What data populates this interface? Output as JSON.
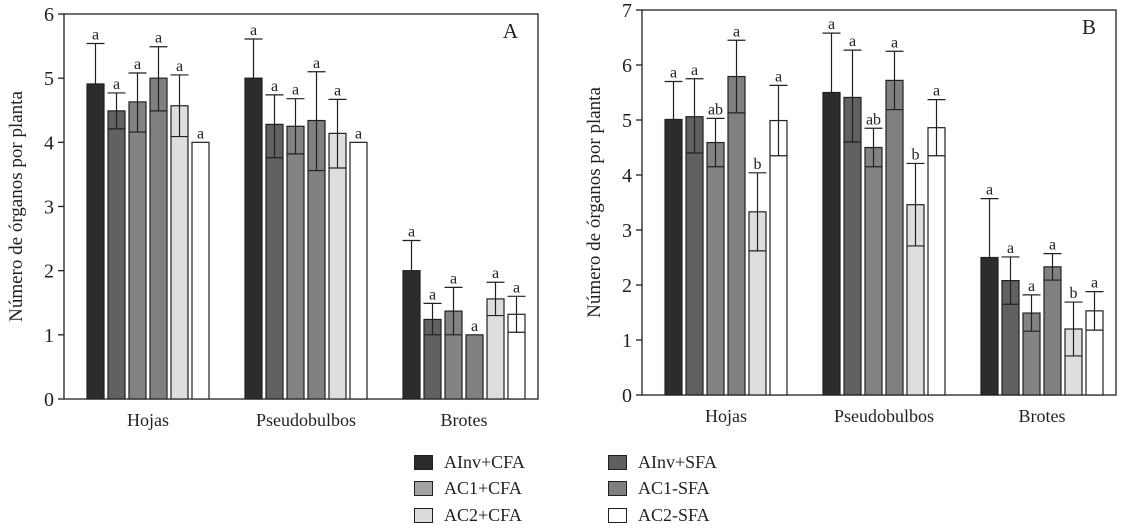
{
  "chart_data": [
    {
      "type": "bar",
      "panel": "A",
      "title": "",
      "xlabel": "",
      "ylabel": "Número de órganos por planta",
      "ylim": [
        0,
        6
      ],
      "yticks": [
        0,
        1,
        2,
        3,
        4,
        5,
        6
      ],
      "categories": [
        "Hojas",
        "Pseudobulbos",
        "Brotes"
      ],
      "series": [
        {
          "name": "AInv+CFA",
          "values": [
            4.91,
            5.0,
            2.0
          ],
          "error_upper": [
            5.54,
            5.61,
            2.47
          ],
          "significance": [
            "a",
            "a",
            "a"
          ]
        },
        {
          "name": "AInv+SFA",
          "values": [
            4.49,
            4.28,
            1.24
          ],
          "error_upper": [
            4.77,
            4.74,
            1.49
          ],
          "error_lower": [
            4.21,
            3.76,
            1.0
          ],
          "significance": [
            "a",
            "a",
            "a"
          ]
        },
        {
          "name": "AC1+CFA",
          "values": [
            4.63,
            4.25,
            1.37
          ],
          "error_upper": [
            5.08,
            4.68,
            1.74
          ],
          "error_lower": [
            4.16,
            3.82,
            1.0
          ],
          "significance": [
            "a",
            "a",
            "a"
          ]
        },
        {
          "name": "AC1-SFA",
          "values": [
            5.0,
            4.34,
            1.0
          ],
          "error_upper": [
            5.49,
            5.1,
            1.0
          ],
          "error_lower": [
            4.49,
            3.56,
            1.0
          ],
          "significance": [
            "a",
            "a",
            "a"
          ]
        },
        {
          "name": "AC2+CFA",
          "values": [
            4.57,
            4.14,
            1.56
          ],
          "error_upper": [
            5.05,
            4.67,
            1.82
          ],
          "error_lower": [
            4.09,
            3.6,
            1.3
          ],
          "significance": [
            "a",
            "a",
            "a"
          ]
        },
        {
          "name": "AC2-SFA",
          "values": [
            4.0,
            4.0,
            1.32
          ],
          "error_upper": [
            4.0,
            4.0,
            1.6
          ],
          "error_lower": [
            4.0,
            4.0,
            1.04
          ],
          "significance": [
            "a",
            "a",
            "a"
          ]
        }
      ],
      "grid": false,
      "legend": "bottom-center"
    },
    {
      "type": "bar",
      "panel": "B",
      "title": "",
      "xlabel": "",
      "ylabel": "Número de órganos por planta",
      "ylim": [
        0,
        7
      ],
      "yticks": [
        0,
        1,
        2,
        3,
        4,
        5,
        6,
        7
      ],
      "categories": [
        "Hojas",
        "Pseudobulbos",
        "Brotes"
      ],
      "series": [
        {
          "name": "AInv+CFA",
          "values": [
            5.01,
            5.5,
            2.5
          ],
          "error_upper": [
            5.7,
            6.58,
            3.57
          ],
          "significance": [
            "a",
            "a",
            "a"
          ]
        },
        {
          "name": "AInv+SFA",
          "values": [
            5.06,
            5.41,
            2.08
          ],
          "error_upper": [
            5.75,
            6.27,
            2.51
          ],
          "error_lower": [
            4.4,
            4.6,
            1.65
          ],
          "significance": [
            "a",
            "a",
            "a"
          ]
        },
        {
          "name": "AC1+CFA",
          "values": [
            4.59,
            4.5,
            1.49
          ],
          "error_upper": [
            5.03,
            4.85,
            1.82
          ],
          "error_lower": [
            4.15,
            4.15,
            1.16
          ],
          "significance": [
            "ab",
            "ab",
            "a"
          ]
        },
        {
          "name": "AC1-SFA",
          "values": [
            5.79,
            5.72,
            2.33
          ],
          "error_upper": [
            6.45,
            6.25,
            2.57
          ],
          "error_lower": [
            5.13,
            5.19,
            2.09
          ],
          "significance": [
            "a",
            "a",
            "a"
          ]
        },
        {
          "name": "AC2+CFA",
          "values": [
            3.33,
            3.46,
            1.2
          ],
          "error_upper": [
            4.04,
            4.21,
            1.69
          ],
          "error_lower": [
            2.62,
            2.71,
            0.71
          ],
          "significance": [
            "b",
            "b",
            "b"
          ]
        },
        {
          "name": "AC2-SFA",
          "values": [
            4.99,
            4.86,
            1.53
          ],
          "error_upper": [
            5.63,
            5.37,
            1.88
          ],
          "error_lower": [
            4.35,
            4.35,
            1.18
          ],
          "significance": [
            "a",
            "a",
            "a"
          ]
        }
      ],
      "grid": false,
      "legend": "bottom-center"
    }
  ],
  "legend": {
    "items": [
      {
        "label": "AInv+CFA",
        "color": "#2e2b2c"
      },
      {
        "label": "AInv+SFA",
        "color": "#5f5f61"
      },
      {
        "label": "AC1+CFA",
        "color": "#a3a3a5"
      },
      {
        "label": "AC1-SFA",
        "color": "#7f7f81"
      },
      {
        "label": "AC2+CFA",
        "color": "#dcdcdc"
      },
      {
        "label": "AC2-SFA",
        "color": "#ffffff"
      }
    ]
  },
  "bar_colors": [
    "#2e2b2c",
    "#616163",
    "#838385",
    "#808082",
    "#dedede",
    "#ffffff"
  ],
  "stroke_color": "#231f20"
}
